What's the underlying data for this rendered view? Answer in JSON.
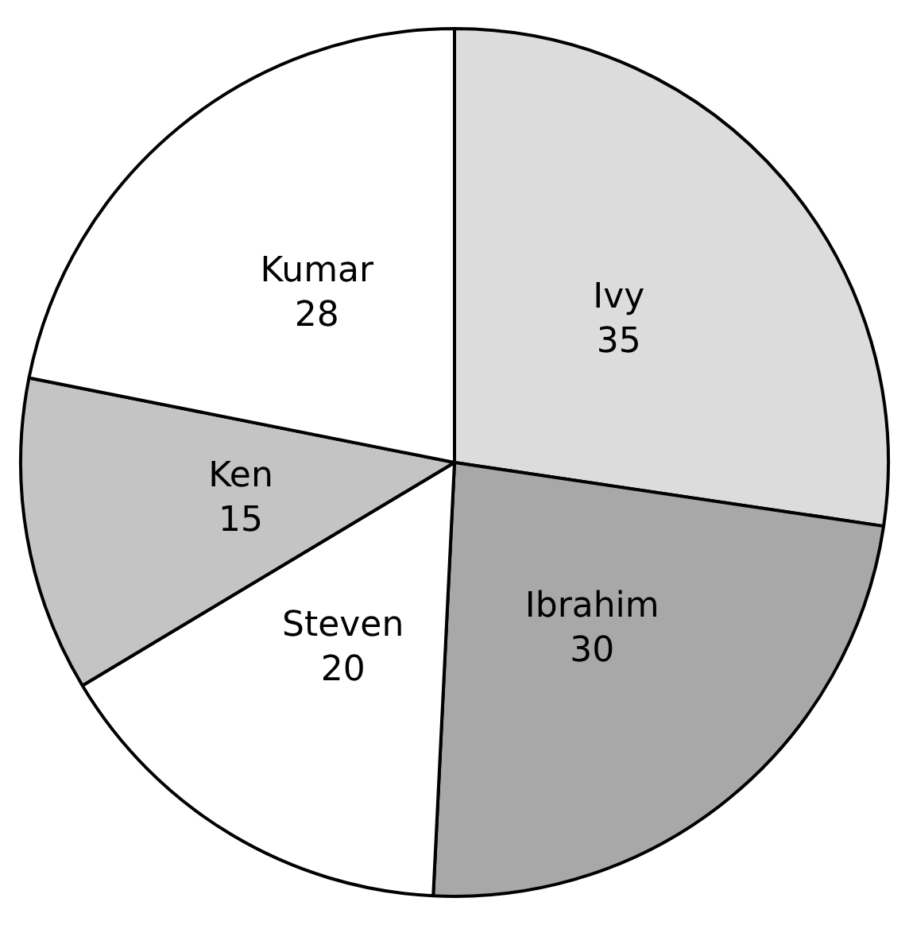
{
  "chart_data": {
    "type": "pie",
    "categories": [
      "Ivy",
      "Ibrahim",
      "Steven",
      "Ken",
      "Kumar"
    ],
    "values": [
      35,
      30,
      20,
      15,
      28
    ],
    "colors": [
      "#dcdcdc",
      "#a8a8a8",
      "#ffffff",
      "#c4c4c4",
      "#ffffff"
    ],
    "data_labels": true,
    "legend": false
  }
}
